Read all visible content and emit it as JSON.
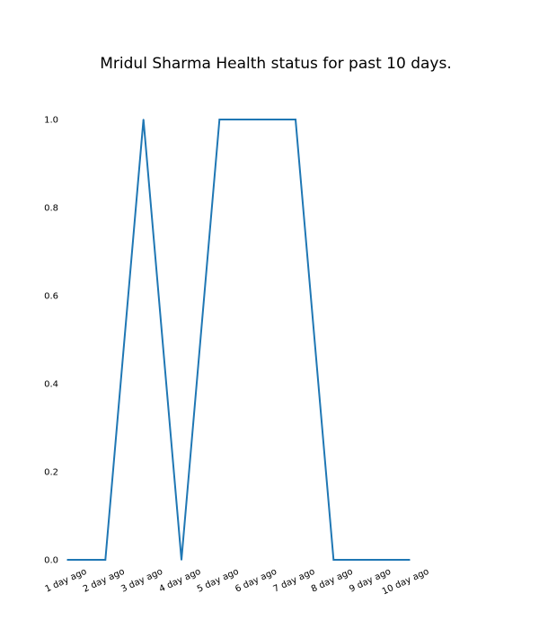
{
  "chart_data": {
    "type": "line",
    "title": "Mridul Sharma Health status for past 10 days.",
    "xlabel": "",
    "ylabel": "",
    "categories": [
      "1 day ago",
      "2 day ago",
      "3 day ago",
      "4 day ago",
      "5 day ago",
      "6 day ago",
      "7 day ago",
      "8 day ago",
      "9 day ago",
      "10 day ago"
    ],
    "series": [
      {
        "values": [
          0,
          0,
          1,
          0,
          1,
          1,
          1,
          0,
          0,
          0
        ],
        "color": "#1f77b4"
      }
    ],
    "ylim": [
      0,
      1
    ],
    "yticks": [
      "0.0",
      "0.2",
      "0.4",
      "0.6",
      "0.8",
      "1.0"
    ],
    "grid": false,
    "legend": "none"
  }
}
